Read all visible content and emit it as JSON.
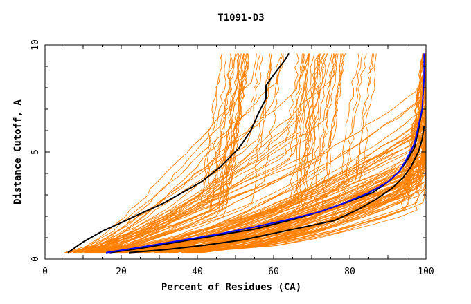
{
  "chart_data": {
    "type": "line",
    "title": "T1091-D3",
    "xlabel": "Percent of Residues (CA)",
    "ylabel": "Distance Cutoff, A",
    "xlim": [
      0,
      100
    ],
    "ylim": [
      0,
      10
    ],
    "x_ticks": [
      0,
      20,
      40,
      60,
      80,
      100
    ],
    "y_ticks": [
      0,
      5,
      10
    ],
    "grid": false,
    "colors": {
      "background_curves": "#ff7f00",
      "highlight_black": "#000000",
      "highlight_blue": "#0000ff"
    },
    "series": [
      {
        "color": "#000000",
        "x": [
          6,
          10,
          15,
          20,
          26,
          31,
          36,
          41,
          46,
          51,
          54,
          56,
          58,
          58,
          60,
          63,
          64
        ],
        "y": [
          0.3,
          0.8,
          1.3,
          1.7,
          2.2,
          2.6,
          3.1,
          3.6,
          4.3,
          5.2,
          6.0,
          6.8,
          7.5,
          8.1,
          8.6,
          9.3,
          9.6
        ]
      },
      {
        "color": "#000000",
        "x": [
          17,
          25,
          35,
          45,
          55,
          64,
          72,
          80,
          86,
          90,
          93,
          95,
          97,
          98,
          99
        ],
        "y": [
          0.3,
          0.5,
          0.8,
          1.1,
          1.4,
          1.8,
          2.2,
          2.7,
          3.1,
          3.6,
          4.1,
          4.6,
          5.2,
          6.0,
          7.0
        ]
      },
      {
        "color": "#000000",
        "x": [
          22,
          32,
          42,
          52,
          60,
          68,
          76,
          82,
          87,
          91,
          94,
          96,
          98,
          99,
          99.5
        ],
        "y": [
          0.3,
          0.45,
          0.65,
          0.9,
          1.2,
          1.5,
          1.8,
          2.3,
          2.8,
          3.3,
          3.8,
          4.3,
          5.0,
          5.6,
          6.2
        ]
      },
      {
        "color": "#0000ff",
        "x": [
          16,
          25,
          35,
          45,
          55,
          64,
          72,
          79,
          85,
          90,
          93,
          95,
          97,
          98,
          99,
          99.5,
          99.5
        ],
        "y": [
          0.3,
          0.55,
          0.85,
          1.15,
          1.5,
          1.85,
          2.2,
          2.65,
          3.1,
          3.6,
          4.1,
          4.7,
          5.4,
          6.2,
          7.0,
          8.5,
          9.6
        ]
      }
    ]
  }
}
